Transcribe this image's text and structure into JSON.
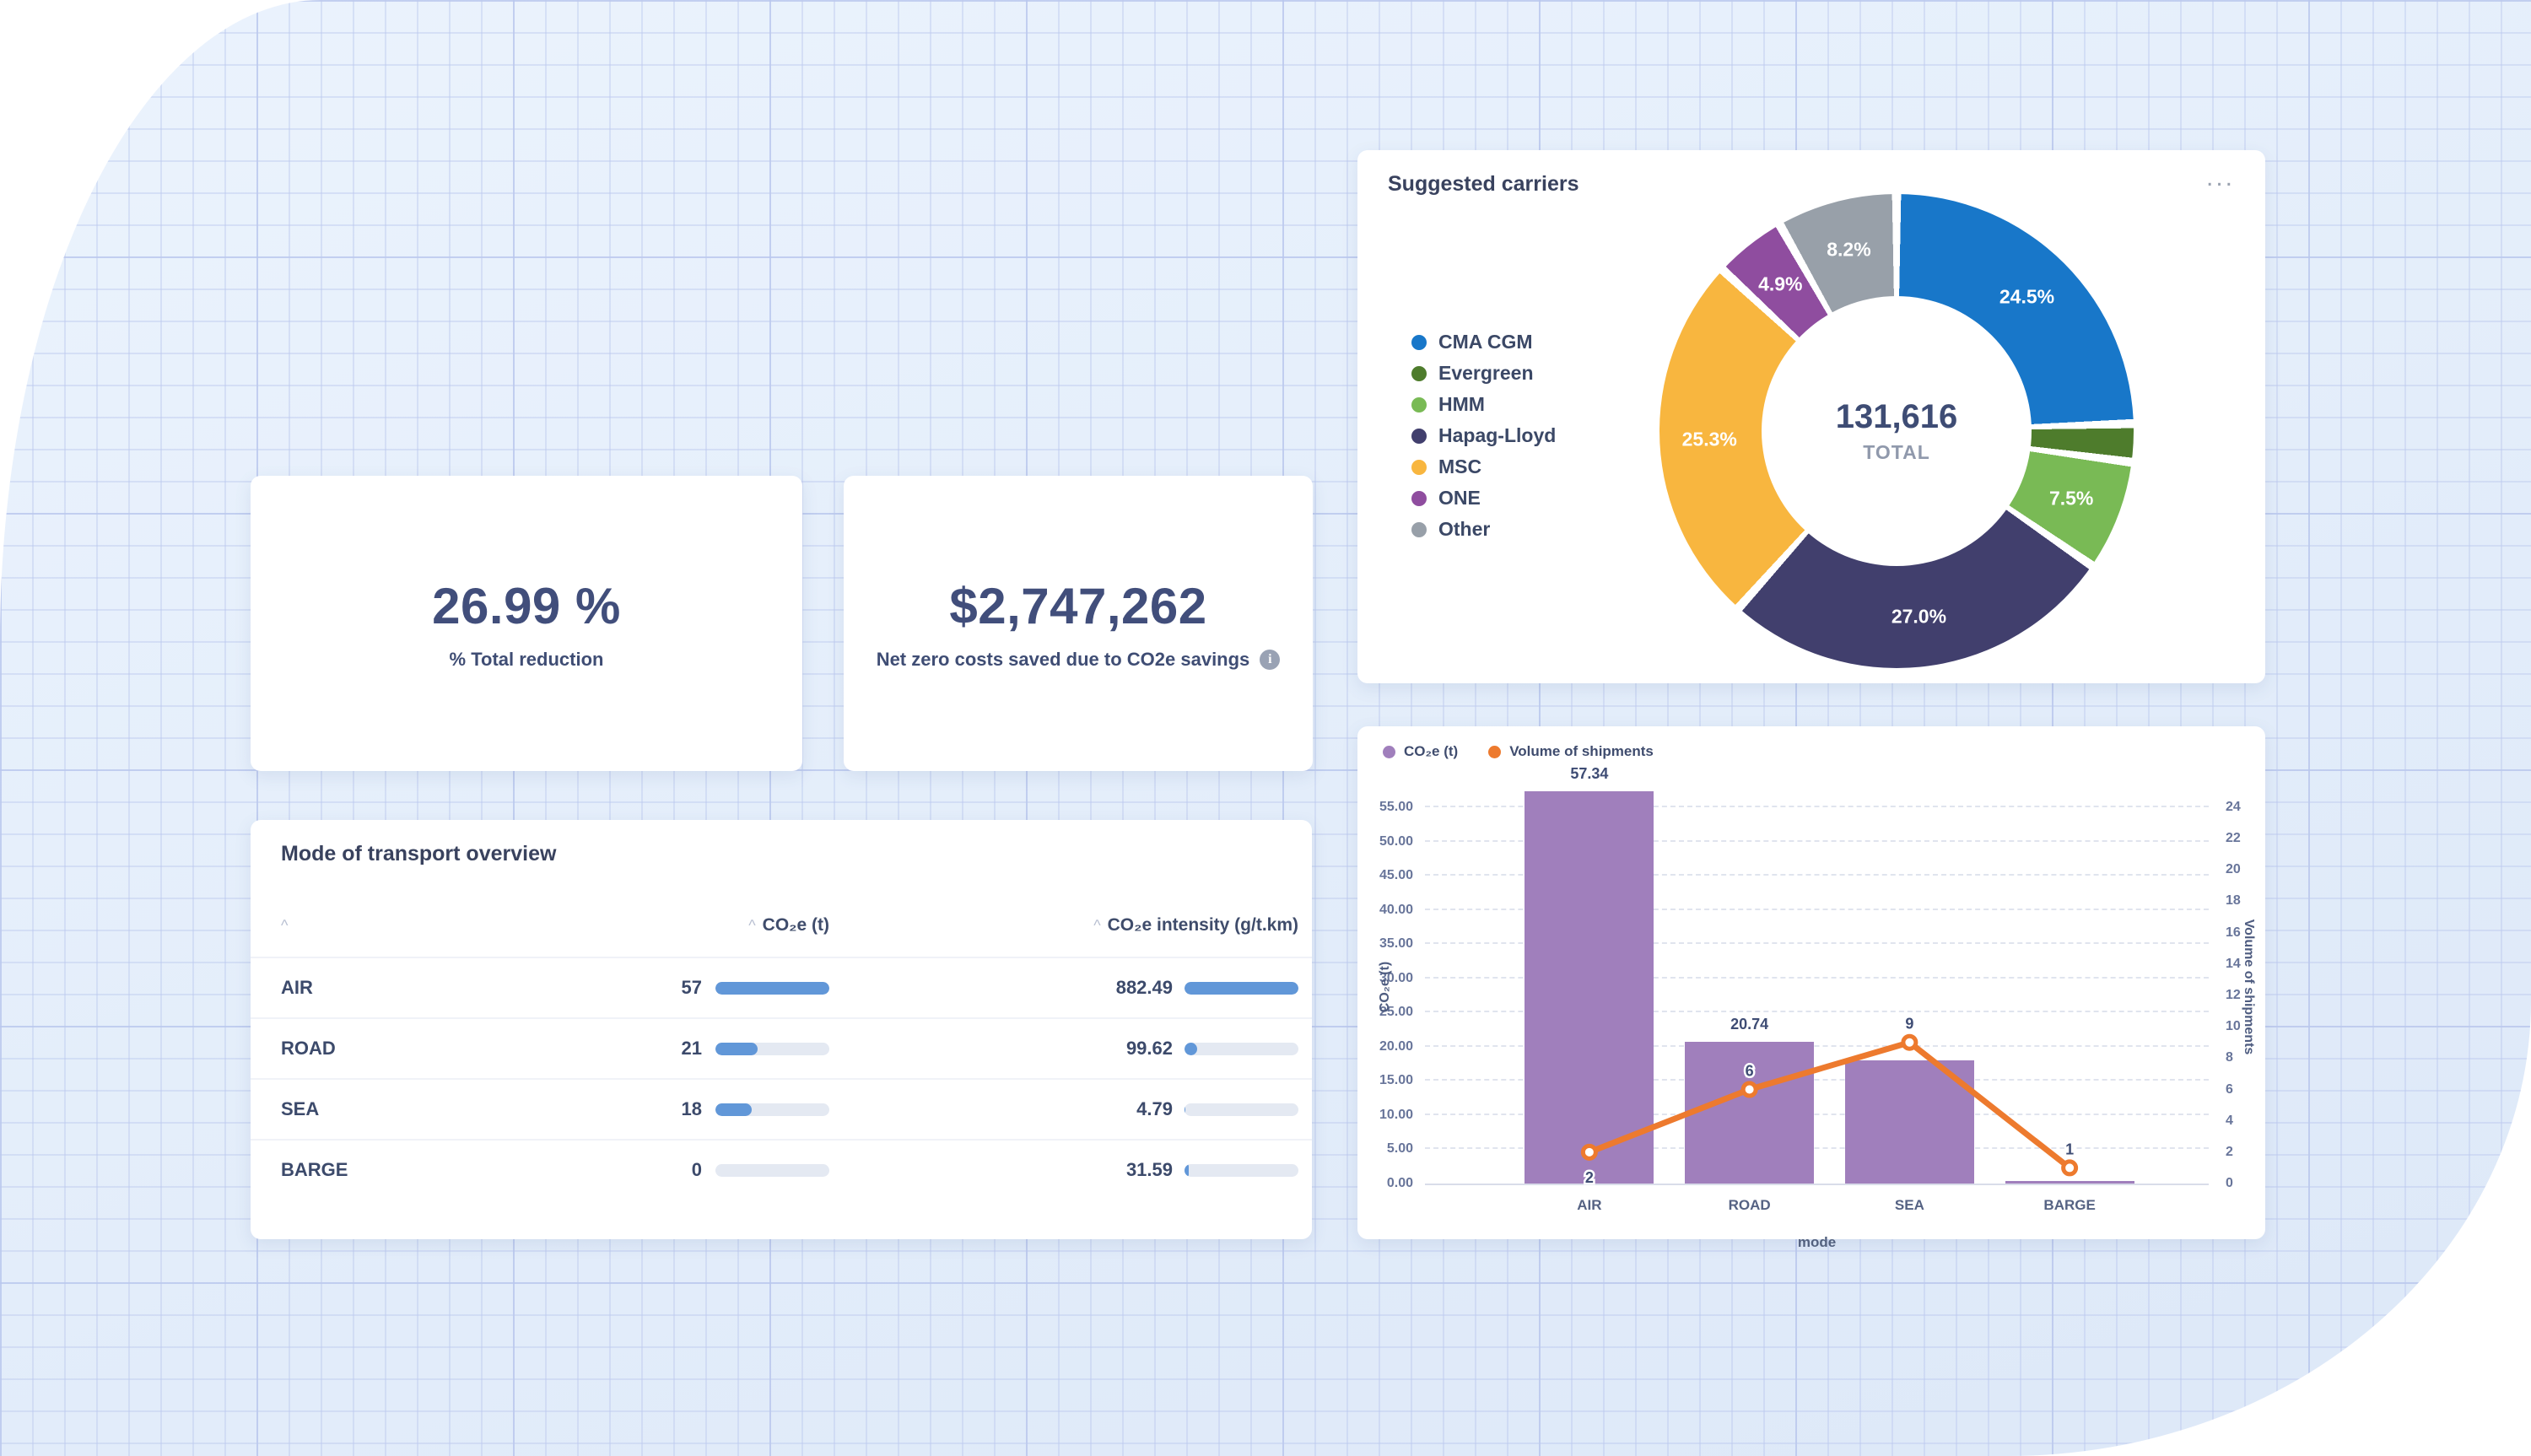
{
  "kpi_cards": [
    {
      "value": "26.99 %",
      "label": "% Total reduction"
    },
    {
      "value": "$2,747,262",
      "label": "Net zero costs saved due to CO2e savings",
      "info_icon": "info-icon"
    }
  ],
  "suggested_carriers": {
    "title": "Suggested carriers",
    "menu_icon": "ellipsis-icon",
    "menu_glyph": "...",
    "total_value": "131,616",
    "total_label": "TOTAL"
  },
  "transport_table": {
    "title": "Mode of transport overview",
    "sort_caret": "^",
    "columns": [
      "",
      "CO₂e (t)",
      "CO₂e intensity (g/t.km)"
    ],
    "rows": [
      {
        "mode": "AIR",
        "co2e": "57",
        "co2e_bar_pct": 100,
        "intensity": "882.49",
        "intensity_bar_pct": 100
      },
      {
        "mode": "ROAD",
        "co2e": "21",
        "co2e_bar_pct": 37,
        "intensity": "99.62",
        "intensity_bar_pct": 11
      },
      {
        "mode": "SEA",
        "co2e": "18",
        "co2e_bar_pct": 32,
        "intensity": "4.79",
        "intensity_bar_pct": 1
      },
      {
        "mode": "BARGE",
        "co2e": "0",
        "co2e_bar_pct": 0,
        "intensity": "31.59",
        "intensity_bar_pct": 4
      }
    ]
  },
  "chart_data": [
    {
      "type": "pie",
      "title": "Suggested carriers",
      "subtype": "donut",
      "center_total": "131,616",
      "legend_position": "left",
      "segments": [
        {
          "label": "CMA CGM",
          "pct": 24.5,
          "color": "#1877c9",
          "show_label": true
        },
        {
          "label": "Evergreen",
          "pct": 2.6,
          "color": "#4e7c2c",
          "show_label": false
        },
        {
          "label": "HMM",
          "pct": 7.5,
          "color": "#79ba55",
          "show_label": true
        },
        {
          "label": "Hapag-Lloyd",
          "pct": 27.0,
          "color": "#413f6d",
          "show_label": true
        },
        {
          "label": "MSC",
          "pct": 25.3,
          "color": "#f8b63f",
          "show_label": true
        },
        {
          "label": "ONE",
          "pct": 4.9,
          "color": "#8f4d9f",
          "show_label": true
        },
        {
          "label": "Other",
          "pct": 8.2,
          "color": "#98a0a9",
          "show_label": true
        }
      ]
    },
    {
      "type": "bar",
      "subtype": "bar+line",
      "categories": [
        "AIR",
        "ROAD",
        "SEA",
        "BARGE"
      ],
      "xlabel": "mode",
      "series": [
        {
          "name": "CO₂e (t)",
          "kind": "bar",
          "color": "#a07fbc",
          "axis": "left",
          "values": [
            57.34,
            20.74,
            18,
            0.4
          ],
          "labels": [
            "57.34",
            "20.74",
            "",
            ""
          ]
        },
        {
          "name": "Volume of shipments",
          "kind": "line",
          "color": "#ed7a2e",
          "axis": "right",
          "values": [
            2,
            6,
            9,
            1
          ],
          "labels": [
            "2",
            "6",
            "9",
            "1"
          ]
        }
      ],
      "left_axis": {
        "label": "CO₂e (t)",
        "ticks": [
          0,
          5,
          10,
          15,
          20,
          25,
          30,
          35,
          40,
          45,
          50,
          55
        ],
        "decimals": 2,
        "max": 57.34
      },
      "right_axis": {
        "label": "Volume of shipments",
        "ticks": [
          0,
          2,
          4,
          6,
          8,
          10,
          12,
          14,
          16,
          18,
          20,
          22,
          24
        ],
        "max": 24,
        "max_maps_to_left": 55
      },
      "grid": "dashed-horizontal",
      "legend_position": "top-left"
    }
  ]
}
